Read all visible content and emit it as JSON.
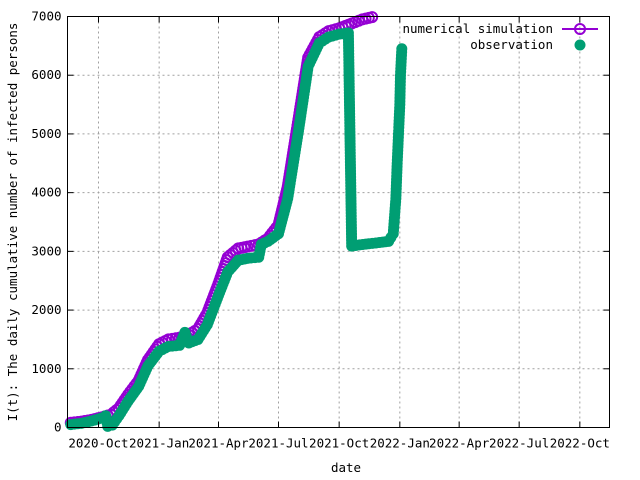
{
  "chart_data": {
    "type": "scatter",
    "xlabel": "date",
    "ylabel": "I(t): The daily cumulative number of infected persons",
    "x_axis": "date",
    "xlim": [
      "2020-08-15",
      "2022-11-15"
    ],
    "ylim": [
      0,
      7000
    ],
    "xticks": [
      {
        "value": "2020-10-01",
        "label": "2020-Oct"
      },
      {
        "value": "2021-01-01",
        "label": "2021-Jan"
      },
      {
        "value": "2021-04-01",
        "label": "2021-Apr"
      },
      {
        "value": "2021-07-01",
        "label": "2021-Jul"
      },
      {
        "value": "2021-10-01",
        "label": "2021-Oct"
      },
      {
        "value": "2022-01-01",
        "label": "2022-Jan"
      },
      {
        "value": "2022-04-01",
        "label": "2022-Apr"
      },
      {
        "value": "2022-07-01",
        "label": "2022-Jul"
      },
      {
        "value": "2022-10-01",
        "label": "2022-Oct"
      }
    ],
    "yticks": [
      0,
      1000,
      2000,
      3000,
      4000,
      5000,
      6000,
      7000
    ],
    "grid": true,
    "legend_position": "top-right",
    "series": [
      {
        "name": "numerical simulation",
        "color": "#9400d3",
        "marker": "open-circle",
        "points": [
          [
            "2020-08-20",
            80
          ],
          [
            "2020-09-05",
            100
          ],
          [
            "2020-09-20",
            130
          ],
          [
            "2020-10-05",
            170
          ],
          [
            "2020-10-20",
            220
          ],
          [
            "2020-11-01",
            330
          ],
          [
            "2020-11-15",
            560
          ],
          [
            "2020-12-01",
            800
          ],
          [
            "2020-12-15",
            1150
          ],
          [
            "2021-01-01",
            1420
          ],
          [
            "2021-01-15",
            1500
          ],
          [
            "2021-02-01",
            1530
          ],
          [
            "2021-02-15",
            1580
          ],
          [
            "2021-03-01",
            1680
          ],
          [
            "2021-03-15",
            1950
          ],
          [
            "2021-04-01",
            2450
          ],
          [
            "2021-04-15",
            2900
          ],
          [
            "2021-05-01",
            3050
          ],
          [
            "2021-05-15",
            3080
          ],
          [
            "2021-06-01",
            3120
          ],
          [
            "2021-06-15",
            3220
          ],
          [
            "2021-07-01",
            3450
          ],
          [
            "2021-07-15",
            4100
          ],
          [
            "2021-08-01",
            5300
          ],
          [
            "2021-08-15",
            6300
          ],
          [
            "2021-09-01",
            6650
          ],
          [
            "2021-09-15",
            6750
          ],
          [
            "2021-10-01",
            6800
          ],
          [
            "2021-10-20",
            6880
          ],
          [
            "2021-11-05",
            6950
          ],
          [
            "2021-11-20",
            6990
          ]
        ]
      },
      {
        "name": "observation",
        "color": "#009e73",
        "marker": "filled-circle",
        "points": [
          [
            "2020-08-20",
            50
          ],
          [
            "2020-09-05",
            70
          ],
          [
            "2020-09-20",
            110
          ],
          [
            "2020-10-05",
            160
          ],
          [
            "2020-10-12",
            200
          ],
          [
            "2020-10-15",
            20
          ],
          [
            "2020-10-22",
            40
          ],
          [
            "2020-11-01",
            200
          ],
          [
            "2020-11-15",
            450
          ],
          [
            "2020-12-01",
            700
          ],
          [
            "2020-12-15",
            1050
          ],
          [
            "2021-01-01",
            1300
          ],
          [
            "2021-01-15",
            1380
          ],
          [
            "2021-02-01",
            1400
          ],
          [
            "2021-02-09",
            1620
          ],
          [
            "2021-02-15",
            1440
          ],
          [
            "2021-03-01",
            1500
          ],
          [
            "2021-03-15",
            1750
          ],
          [
            "2021-04-01",
            2250
          ],
          [
            "2021-04-15",
            2650
          ],
          [
            "2021-05-01",
            2850
          ],
          [
            "2021-05-15",
            2880
          ],
          [
            "2021-06-01",
            2900
          ],
          [
            "2021-06-05",
            3120
          ],
          [
            "2021-06-15",
            3170
          ],
          [
            "2021-07-01",
            3300
          ],
          [
            "2021-07-15",
            3900
          ],
          [
            "2021-08-01",
            5100
          ],
          [
            "2021-08-15",
            6150
          ],
          [
            "2021-09-01",
            6550
          ],
          [
            "2021-09-15",
            6650
          ],
          [
            "2021-10-01",
            6700
          ],
          [
            "2021-10-15",
            6720
          ],
          [
            "2021-10-20",
            3090
          ],
          [
            "2021-11-01",
            3110
          ],
          [
            "2021-11-15",
            3130
          ],
          [
            "2021-12-01",
            3150
          ],
          [
            "2021-12-15",
            3170
          ],
          [
            "2021-12-22",
            3300
          ],
          [
            "2021-12-26",
            3900
          ],
          [
            "2021-12-28",
            4500
          ],
          [
            "2021-12-30",
            5000
          ],
          [
            "2022-01-01",
            5500
          ],
          [
            "2022-01-02",
            6000
          ],
          [
            "2022-01-04",
            6450
          ]
        ]
      }
    ]
  }
}
